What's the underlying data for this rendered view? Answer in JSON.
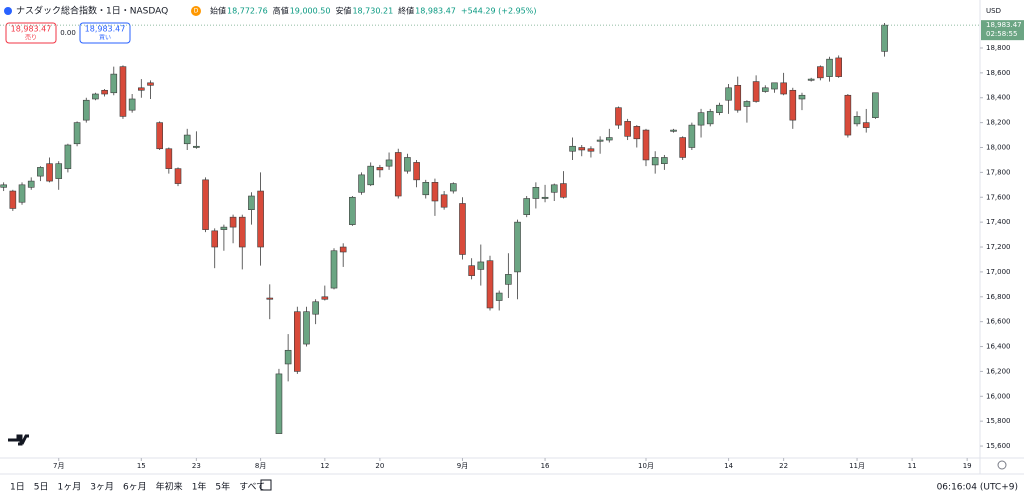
{
  "chart_data": {
    "type": "candlestick",
    "title": "ナスダック総合指数・1日・NASDAQ",
    "badge": "D",
    "ohlc_header": [
      {
        "label": "始値",
        "value": "18,772.76"
      },
      {
        "label": "高値",
        "value": "19,000.50"
      },
      {
        "label": "安値",
        "value": "18,730.21"
      },
      {
        "label": "終値",
        "value": "18,983.47"
      }
    ],
    "change": "+544.29 (+2.95%)",
    "trade": {
      "sell_price": "18,983.47",
      "sell": "売り",
      "spread": "0.00",
      "buy_price": "18,983.47",
      "buy": "買い"
    },
    "currency": "USD",
    "price_tag": {
      "value": 18983.47,
      "label": "18,983.47",
      "countdown": "02:58:55"
    },
    "up_color": "#6ba583",
    "down_color": "#d84a3a",
    "open": [
      17680,
      17650,
      17560,
      17680,
      17770,
      17870,
      17750,
      17830,
      18030,
      18220,
      18390,
      18460,
      18440,
      18650,
      18300,
      18480,
      18520,
      18200,
      17990,
      17830,
      18030,
      18000,
      17740,
      17330,
      17340,
      17440,
      17440,
      17500,
      17650,
      16790,
      15700,
      16260,
      16680,
      16420,
      16660,
      16800,
      16870,
      17200,
      17380,
      17640,
      17700,
      17840,
      17850,
      17960,
      17810,
      17880,
      17620,
      17720,
      17620,
      17650,
      17550,
      17050,
      17020,
      17090,
      16770,
      16900,
      17000,
      17460,
      17590,
      17590,
      17640,
      17710,
      17970,
      18000,
      17990,
      18050,
      18060,
      18320,
      18210,
      18170,
      18140,
      17860,
      17870,
      18130,
      18080,
      18000,
      18180,
      18190,
      18280,
      18380,
      18500,
      18330,
      18530,
      18450,
      18470,
      18520,
      18460,
      18390,
      18540,
      18650,
      18570,
      18720,
      18420,
      18190,
      18200,
      18240,
      18772.76
    ],
    "high": [
      17720,
      17660,
      17720,
      17760,
      17850,
      17920,
      17890,
      18030,
      18210,
      18400,
      18440,
      18470,
      18650,
      18660,
      18430,
      18550,
      18540,
      18210,
      18000,
      17840,
      18150,
      18130,
      17760,
      17350,
      17380,
      17460,
      17460,
      17640,
      17800,
      16900,
      16220,
      16500,
      16720,
      16720,
      16780,
      16890,
      17190,
      17230,
      17610,
      17800,
      17880,
      17860,
      17960,
      17990,
      17950,
      17900,
      17740,
      17750,
      17650,
      17720,
      17600,
      17110,
      17220,
      17130,
      16850,
      17150,
      17420,
      17610,
      17720,
      17700,
      17710,
      17810,
      18080,
      18020,
      18010,
      18090,
      18150,
      18330,
      18230,
      18180,
      18150,
      17970,
      17940,
      18150,
      18090,
      18200,
      18310,
      18310,
      18360,
      18510,
      18570,
      18380,
      18580,
      18500,
      18520,
      18600,
      18480,
      18440,
      18560,
      18660,
      18730,
      18740,
      18430,
      18290,
      18310,
      18440,
      19000.5
    ],
    "low": [
      17650,
      17490,
      17540,
      17660,
      17730,
      17720,
      17660,
      17800,
      18010,
      18200,
      18380,
      18410,
      18420,
      18230,
      18280,
      18400,
      18390,
      17980,
      17790,
      17690,
      17980,
      17990,
      17320,
      17030,
      17170,
      17230,
      17020,
      17380,
      17050,
      16620,
      15700,
      16120,
      16180,
      16400,
      16580,
      16770,
      16860,
      17040,
      17370,
      17620,
      17690,
      17760,
      17820,
      17590,
      17790,
      17680,
      17590,
      17450,
      17500,
      17630,
      17100,
      16940,
      16890,
      16690,
      16690,
      16790,
      16780,
      17440,
      17510,
      17560,
      17570,
      17590,
      17900,
      17930,
      17920,
      17950,
      18040,
      18150,
      18060,
      18000,
      17850,
      17790,
      17820,
      18120,
      17900,
      17980,
      18080,
      18170,
      18260,
      18270,
      18280,
      18200,
      18360,
      18440,
      18440,
      18420,
      18150,
      18300,
      18530,
      18540,
      18530,
      18560,
      18080,
      18170,
      18120,
      18230,
      18730.21
    ],
    "close": [
      17700,
      17510,
      17700,
      17730,
      17840,
      17730,
      17870,
      18020,
      18200,
      18380,
      18430,
      18430,
      18590,
      18250,
      18390,
      18460,
      18500,
      17990,
      17830,
      17710,
      18100,
      18010,
      17340,
      17200,
      17360,
      17360,
      17200,
      17610,
      17200,
      16780,
      16180,
      16370,
      16200,
      16680,
      16760,
      16780,
      17170,
      17160,
      17600,
      17780,
      17850,
      17820,
      17900,
      17610,
      17920,
      17740,
      17720,
      17570,
      17520,
      17710,
      17140,
      16970,
      17080,
      16710,
      16830,
      16980,
      17400,
      17590,
      17680,
      17600,
      17700,
      17600,
      18010,
      17980,
      17970,
      18060,
      18080,
      18180,
      18090,
      18070,
      17900,
      17920,
      17920,
      18140,
      17920,
      18180,
      18280,
      18290,
      18340,
      18480,
      18300,
      18370,
      18370,
      18480,
      18520,
      18430,
      18220,
      18420,
      18550,
      18560,
      18710,
      18570,
      18100,
      18250,
      18160,
      18440,
      18983.47
    ],
    "xlim": [
      -0.4,
      106.4
    ],
    "xticks": [
      {
        "value": 6,
        "label": "7月"
      },
      {
        "value": 15,
        "label": "15"
      },
      {
        "value": 21,
        "label": "23"
      },
      {
        "value": 28,
        "label": "8月"
      },
      {
        "value": 35,
        "label": "12"
      },
      {
        "value": 41,
        "label": "20"
      },
      {
        "value": 50,
        "label": "9月"
      },
      {
        "value": 59,
        "label": "16"
      },
      {
        "value": 70,
        "label": "10月"
      },
      {
        "value": 79,
        "label": "14"
      },
      {
        "value": 85,
        "label": "22"
      },
      {
        "value": 93,
        "label": "11月"
      },
      {
        "value": 99,
        "label": "11"
      },
      {
        "value": 105,
        "label": "19"
      }
    ],
    "ylim": [
      15504,
      19041
    ],
    "yticks": [
      {
        "value": 15600,
        "label": "15,600"
      },
      {
        "value": 15800,
        "label": "15,800"
      },
      {
        "value": 16000,
        "label": "16,000"
      },
      {
        "value": 16200,
        "label": "16,200"
      },
      {
        "value": 16400,
        "label": "16,400"
      },
      {
        "value": 16600,
        "label": "16,600"
      },
      {
        "value": 16800,
        "label": "16,800"
      },
      {
        "value": 17000,
        "label": "17,000"
      },
      {
        "value": 17200,
        "label": "17,200"
      },
      {
        "value": 17400,
        "label": "17,400"
      },
      {
        "value": 17600,
        "label": "17,600"
      },
      {
        "value": 17800,
        "label": "17,800"
      },
      {
        "value": 18000,
        "label": "18,000"
      },
      {
        "value": 18200,
        "label": "18,200"
      },
      {
        "value": 18400,
        "label": "18,400"
      },
      {
        "value": 18600,
        "label": "18,600"
      },
      {
        "value": 18800,
        "label": "18,800"
      }
    ]
  },
  "toolbar": {
    "ranges": [
      "1日",
      "5日",
      "1ヶ月",
      "3ヶ月",
      "6ヶ月",
      "年初来",
      "1年",
      "5年",
      "すべて"
    ],
    "clock": "06:16:04 (UTC+9)"
  }
}
